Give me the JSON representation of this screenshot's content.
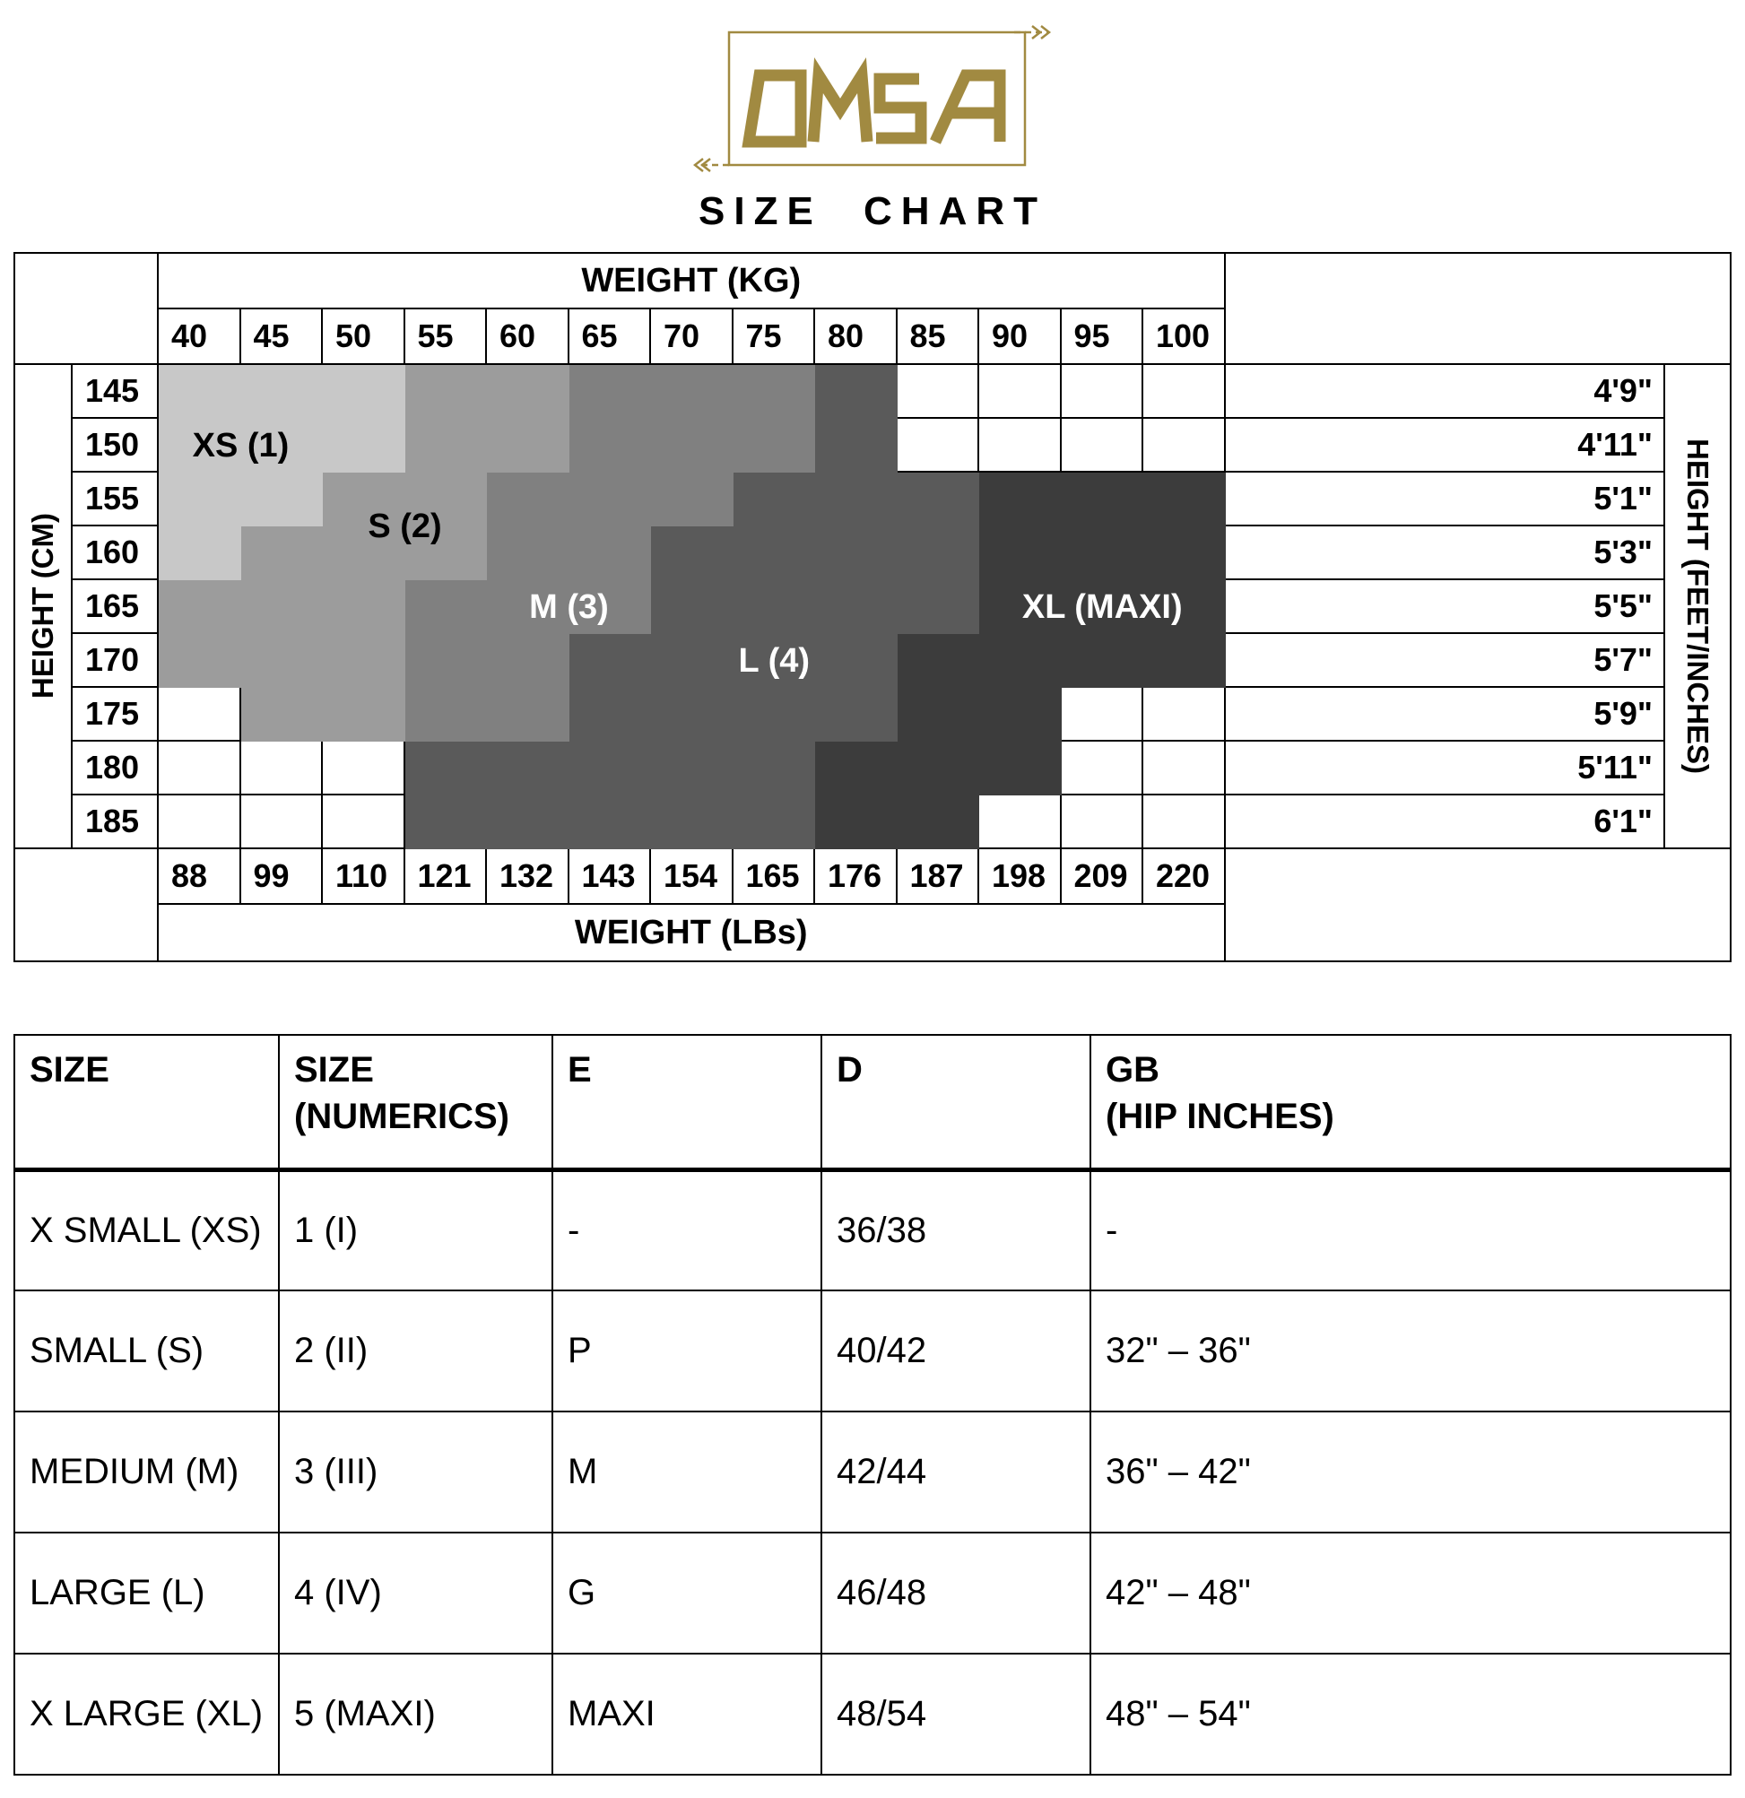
{
  "logo": {
    "brand": "OMSA",
    "subtitle": "SIZE CHART",
    "color": "#a18a41"
  },
  "chart_data": {
    "type": "heatmap",
    "title_top": "WEIGHT (KG)",
    "title_bottom": "WEIGHT (LBs)",
    "left_axis_label": "HEIGHT (CM)",
    "right_axis_label": "HEIGHT (FEET/INCHES)",
    "weights_kg": [
      40,
      45,
      50,
      55,
      60,
      65,
      70,
      75,
      80,
      85,
      90,
      95,
      100
    ],
    "weights_lbs": [
      88,
      99,
      110,
      121,
      132,
      143,
      154,
      165,
      176,
      187,
      198,
      209,
      220
    ],
    "heights_cm": [
      145,
      150,
      155,
      160,
      165,
      170,
      175,
      180,
      185
    ],
    "heights_ftin": [
      "4'9\"",
      "4'11\"",
      "5'1\"",
      "5'3\"",
      "5'5\"",
      "5'7\"",
      "5'9\"",
      "5'11\"",
      "6'1\""
    ],
    "zone_colors": {
      "XS": "#c8c8c8",
      "S": "#9c9c9c",
      "M": "#808080",
      "L": "#5a5a5a",
      "XL": "#3c3c3c"
    },
    "cells": [
      [
        "XS",
        "XS",
        "XS",
        "S",
        "S",
        "M",
        "M",
        "M",
        "L",
        "",
        "",
        "",
        ""
      ],
      [
        "XS",
        "XS",
        "XS",
        "S",
        "S",
        "M",
        "M",
        "M",
        "L",
        "",
        "",
        "",
        ""
      ],
      [
        "XS",
        "XS",
        "S",
        "S",
        "M",
        "M",
        "M",
        "L",
        "L",
        "L",
        "XL",
        "XL",
        "XL"
      ],
      [
        "XS",
        "S",
        "S",
        "S",
        "M",
        "M",
        "L",
        "L",
        "L",
        "L",
        "XL",
        "XL",
        "XL"
      ],
      [
        "S",
        "S",
        "S",
        "M",
        "M",
        "M",
        "L",
        "L",
        "L",
        "L",
        "XL",
        "XL",
        "XL"
      ],
      [
        "S",
        "S",
        "S",
        "M",
        "M",
        "L",
        "L",
        "L",
        "L",
        "XL",
        "XL",
        "XL",
        "XL"
      ],
      [
        "",
        "S",
        "S",
        "M",
        "M",
        "L",
        "L",
        "L",
        "L",
        "XL",
        "XL",
        "",
        ""
      ],
      [
        "",
        "",
        "",
        "L",
        "L",
        "L",
        "L",
        "L",
        "XL",
        "XL",
        "XL",
        "",
        ""
      ],
      [
        "",
        "",
        "",
        "L",
        "L",
        "L",
        "L",
        "L",
        "XL",
        "XL",
        "",
        "",
        ""
      ]
    ],
    "labels": [
      {
        "text": "XS (1)",
        "row": 1,
        "row_span": 1,
        "col": 0,
        "col_span": 2,
        "color": "#000000"
      },
      {
        "text": "S (2)",
        "row": 2,
        "row_span": 2,
        "col": 2,
        "col_span": 2,
        "color": "#000000"
      },
      {
        "text": "M (3)",
        "row": 4,
        "row_span": 1,
        "col": 4,
        "col_span": 2,
        "color": "#ffffff"
      },
      {
        "text": "L (4)",
        "row": 5,
        "row_span": 1,
        "col": 7,
        "col_span": 1,
        "color": "#ffffff"
      },
      {
        "text": "XL (MAXI)",
        "row": 4,
        "row_span": 1,
        "col": 10,
        "col_span": 3,
        "color": "#ffffff"
      }
    ]
  },
  "size_table": {
    "headers": [
      "SIZE",
      "SIZE\n(NUMERICS)",
      "E",
      "D",
      "GB\n(HIP INCHES)"
    ],
    "rows": [
      [
        "X SMALL (XS)",
        "1 (I)",
        "-",
        "36/38",
        "-"
      ],
      [
        "SMALL (S)",
        "2 (II)",
        "P",
        "40/42",
        "32\" – 36\""
      ],
      [
        "MEDIUM (M)",
        "3 (III)",
        "M",
        "42/44",
        "36\" – 42\""
      ],
      [
        "LARGE (L)",
        "4 (IV)",
        "G",
        "46/48",
        "42\" – 48\""
      ],
      [
        "X LARGE (XL)",
        "5 (MAXI)",
        "MAXI",
        "48/54",
        "48\" – 54\""
      ]
    ]
  }
}
